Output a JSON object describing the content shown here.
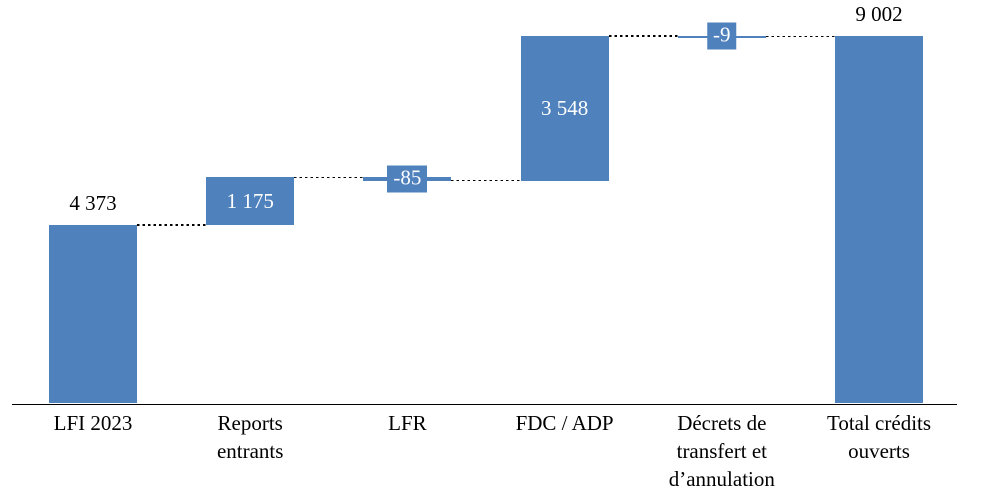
{
  "chart_data": {
    "type": "bar",
    "variant": "waterfall",
    "title": "",
    "xlabel": "",
    "ylabel": "",
    "grid": false,
    "legend": false,
    "background": "#FFFFFF",
    "bar_color": "#4F81BD",
    "connector_color": "#000000",
    "axis_color": "#000000",
    "value_label_font_px": 21,
    "category_label_font_px": 21,
    "categories": [
      "LFI 2023",
      "Reports entrants",
      "LFR",
      "FDC / ADP",
      "Décrets de transfert et d’annulation",
      "Total crédits ouverts"
    ],
    "values": [
      4373,
      1175,
      -85,
      3548,
      -9,
      9002
    ],
    "cumulative": [
      4373,
      5548,
      5463,
      9011,
      9002,
      9002
    ],
    "bars": [
      {
        "category_lines": [
          "LFI 2023"
        ],
        "value": 4373,
        "label": "4 373",
        "kind": "start",
        "label_pos": "above",
        "label_color": "#000000"
      },
      {
        "category_lines": [
          "Reports",
          "entrants"
        ],
        "value": 1175,
        "label": "1 175",
        "kind": "delta",
        "label_pos": "inside",
        "label_color": "#FFFFFF"
      },
      {
        "category_lines": [
          "LFR"
        ],
        "value": -85,
        "label": "-85",
        "kind": "delta",
        "label_pos": "box",
        "label_color": "#FFFFFF"
      },
      {
        "category_lines": [
          "FDC / ADP"
        ],
        "value": 3548,
        "label": "3 548",
        "kind": "delta",
        "label_pos": "inside",
        "label_color": "#FFFFFF"
      },
      {
        "category_lines": [
          "Décrets de",
          "transfert et",
          "d’annulation"
        ],
        "value": -9,
        "label": "-9",
        "kind": "delta",
        "label_pos": "box",
        "label_color": "#FFFFFF"
      },
      {
        "category_lines": [
          "Total crédits",
          "ouverts"
        ],
        "value": 9002,
        "label": "9 002",
        "kind": "total",
        "label_pos": "above",
        "label_color": "#000000"
      }
    ]
  }
}
